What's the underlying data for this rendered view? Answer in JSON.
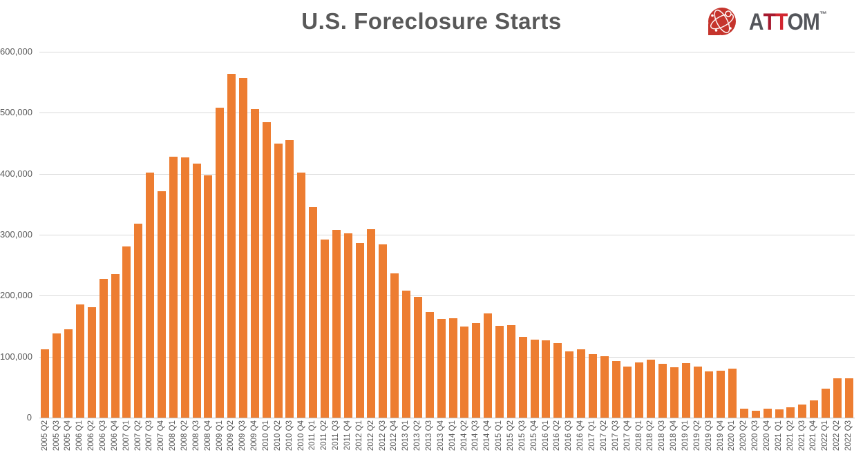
{
  "page": {
    "background": "#FFFFFF"
  },
  "logo": {
    "name": "ATTOM",
    "icon_name": "attom-globe-icon",
    "icon_color": "#C5342C",
    "letters": [
      {
        "char": "A",
        "color": "#54565B"
      },
      {
        "char": "T",
        "color": "#A6192E"
      },
      {
        "char": "T",
        "color": "#D22630"
      },
      {
        "char": "O",
        "color": "#54565B"
      },
      {
        "char": "M",
        "color": "#54565B"
      }
    ],
    "trademark": "™"
  },
  "chart_data": {
    "type": "bar",
    "title": "U.S. Foreclosure Starts",
    "xlabel": "",
    "ylabel": "",
    "ylim": [
      0,
      600000
    ],
    "grid": true,
    "legend": "none",
    "bar_color": "#ED7D31",
    "gridline_color": "#D9D9D9",
    "axis_line_color": "#BFBFBF",
    "tick_label_color": "#595959",
    "title_color": "#595959",
    "y_ticks": [
      "600,000",
      "500,000",
      "400,000",
      "300,000",
      "200,000",
      "100,000",
      "0"
    ],
    "categories": [
      "2005 Q2",
      "2005 Q3",
      "2005 Q4",
      "2006 Q1",
      "2006 Q2",
      "2006 Q3",
      "2006 Q4",
      "2007 Q1",
      "2007 Q2",
      "2007 Q3",
      "2007 Q4",
      "2008 Q1",
      "2008 Q2",
      "2008 Q3",
      "2008 Q4",
      "2009 Q1",
      "2009 Q2",
      "2009 Q3",
      "2009 Q4",
      "2010 Q1",
      "2010 Q2",
      "2010 Q3",
      "2010 Q4",
      "2011 Q1",
      "2011 Q2",
      "2011 Q3",
      "2011 Q4",
      "2012 Q1",
      "2012 Q2",
      "2012 Q3",
      "2012 Q4",
      "2013 Q1",
      "2013 Q2",
      "2013 Q3",
      "2013 Q4",
      "2014 Q1",
      "2014 Q2",
      "2014 Q3",
      "2014 Q4",
      "2015 Q1",
      "2015 Q2",
      "2015 Q3",
      "2015 Q4",
      "2016 Q1",
      "2016 Q2",
      "2016 Q3",
      "2016 Q4",
      "2017 Q1",
      "2017 Q2",
      "2017 Q3",
      "2017 Q4",
      "2018 Q1",
      "2018 Q2",
      "2018 Q3",
      "2018 Q4",
      "2019 Q1",
      "2019 Q2",
      "2019 Q3",
      "2019 Q4",
      "2020 Q1",
      "2020 Q2",
      "2020 Q3",
      "2020 Q4",
      "2021 Q1",
      "2021 Q2",
      "2021 Q3",
      "2021 Q4",
      "2022 Q1",
      "2022 Q2",
      "2022 Q3"
    ],
    "values": [
      112000,
      138000,
      145000,
      186000,
      181000,
      227000,
      235000,
      281000,
      318000,
      402000,
      371000,
      428000,
      427000,
      417000,
      397000,
      508000,
      564000,
      557000,
      506000,
      484000,
      450000,
      455000,
      402000,
      345000,
      292000,
      308000,
      302000,
      286000,
      309000,
      284000,
      237000,
      208000,
      198000,
      173000,
      162000,
      163000,
      150000,
      155000,
      171000,
      151000,
      152000,
      132000,
      128000,
      127000,
      122000,
      109000,
      112000,
      104000,
      101000,
      93000,
      84000,
      91000,
      95000,
      88000,
      83000,
      89000,
      84000,
      76000,
      77000,
      80000,
      14500,
      11500,
      14500,
      14000,
      17500,
      22000,
      28000,
      48000,
      64000,
      64000
    ]
  }
}
